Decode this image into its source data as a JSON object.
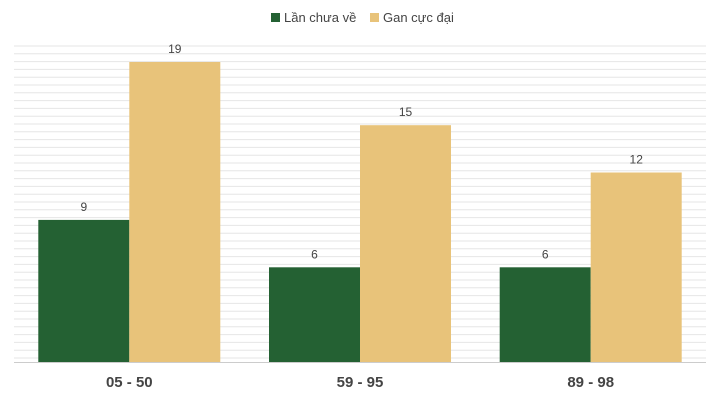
{
  "chart_data": {
    "type": "bar",
    "categories": [
      "05 - 50",
      "59 - 95",
      "89 - 98"
    ],
    "series": [
      {
        "name": "Lần chưa về",
        "values": [
          9,
          6,
          6
        ],
        "color": "#246133"
      },
      {
        "name": "Gan cực đại",
        "values": [
          19,
          15,
          12
        ],
        "color": "#e8c37a"
      }
    ],
    "ylim": [
      0,
      19
    ],
    "grid": true,
    "legend": "top-center"
  }
}
